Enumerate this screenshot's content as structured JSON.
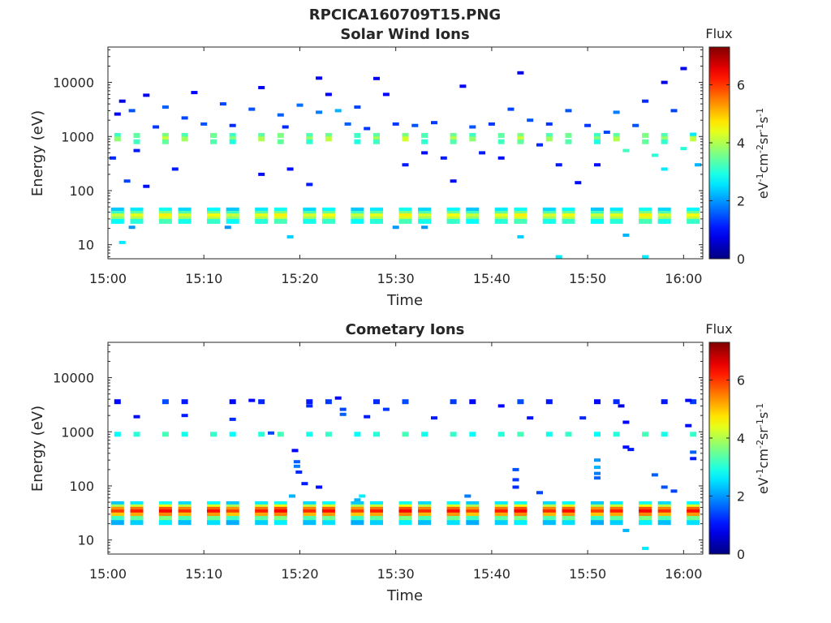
{
  "figure_title": "RPCICA160709T15.PNG",
  "chart_data": [
    {
      "type": "heatmap",
      "title": "Solar Wind Ions",
      "xlabel": "Time",
      "ylabel": "Energy (eV)",
      "x_ticks": [
        "15:00",
        "15:10",
        "15:20",
        "15:30",
        "15:40",
        "15:50",
        "16:00"
      ],
      "x_range_minutes": [
        0,
        62
      ],
      "y_scale": "log",
      "y_ticks": [
        10,
        100,
        1000,
        10000
      ],
      "y_range": [
        5.5,
        45000
      ],
      "grid": false,
      "colorbar": {
        "label": "Flux",
        "units": "eV-1cm-2sr-1s-1",
        "ticks": [
          0,
          2,
          4,
          6
        ],
        "range": [
          0,
          7.3
        ],
        "colormap": "jet"
      },
      "columns_minutes": [
        1,
        3,
        6,
        8,
        11,
        13,
        16,
        18,
        21,
        23,
        26,
        28,
        31,
        33,
        36,
        38,
        41,
        43,
        46,
        48,
        51,
        53,
        56,
        58,
        61
      ],
      "low_band": [
        {
          "energy": 44,
          "value": 2.6
        },
        {
          "energy": 38,
          "value": 3.4
        },
        {
          "energy": 34,
          "value": 4.4
        },
        {
          "energy": 30,
          "value": 4.0
        },
        {
          "energy": 27,
          "value": 3.0
        }
      ],
      "mid_band": [
        {
          "energy": 1050,
          "value": 3.4
        },
        {
          "energy": 900,
          "value": 4.0
        },
        {
          "energy": 800,
          "value": 3.2
        }
      ],
      "scatter": [
        {
          "t": 0.5,
          "energy": 400,
          "value": 1.2
        },
        {
          "t": 1,
          "energy": 2600,
          "value": 0.9
        },
        {
          "t": 1.5,
          "energy": 4500,
          "value": 0.8
        },
        {
          "t": 2,
          "energy": 150,
          "value": 1.4
        },
        {
          "t": 2.5,
          "energy": 3000,
          "value": 1.5
        },
        {
          "t": 3,
          "energy": 550,
          "value": 1.1
        },
        {
          "t": 4,
          "energy": 5800,
          "value": 0.8
        },
        {
          "t": 4,
          "energy": 120,
          "value": 1.0
        },
        {
          "t": 5,
          "energy": 1500,
          "value": 1.3
        },
        {
          "t": 6,
          "energy": 3500,
          "value": 1.6
        },
        {
          "t": 7,
          "energy": 250,
          "value": 1.1
        },
        {
          "t": 8,
          "energy": 2200,
          "value": 1.4
        },
        {
          "t": 9,
          "energy": 6500,
          "value": 0.9
        },
        {
          "t": 10,
          "energy": 1700,
          "value": 1.5
        },
        {
          "t": 12,
          "energy": 4000,
          "value": 1.4
        },
        {
          "t": 13,
          "energy": 1600,
          "value": 1.2
        },
        {
          "t": 15,
          "energy": 3200,
          "value": 1.5
        },
        {
          "t": 16,
          "energy": 8000,
          "value": 0.9
        },
        {
          "t": 16,
          "energy": 200,
          "value": 1.0
        },
        {
          "t": 18,
          "energy": 2500,
          "value": 1.6
        },
        {
          "t": 18.5,
          "energy": 1500,
          "value": 1.2
        },
        {
          "t": 19,
          "energy": 250,
          "value": 1.0
        },
        {
          "t": 20,
          "energy": 3800,
          "value": 1.7
        },
        {
          "t": 21,
          "energy": 130,
          "value": 1.1
        },
        {
          "t": 22,
          "energy": 12000,
          "value": 0.8
        },
        {
          "t": 22,
          "energy": 2800,
          "value": 1.8
        },
        {
          "t": 23,
          "energy": 6000,
          "value": 0.9
        },
        {
          "t": 24,
          "energy": 3000,
          "value": 2.2
        },
        {
          "t": 25,
          "energy": 1700,
          "value": 1.6
        },
        {
          "t": 26,
          "energy": 3500,
          "value": 1.4
        },
        {
          "t": 27,
          "energy": 1400,
          "value": 1.3
        },
        {
          "t": 28,
          "energy": 11800,
          "value": 0.8
        },
        {
          "t": 29,
          "energy": 6000,
          "value": 0.9
        },
        {
          "t": 30,
          "energy": 1700,
          "value": 1.3
        },
        {
          "t": 31,
          "energy": 300,
          "value": 1.1
        },
        {
          "t": 32,
          "energy": 1600,
          "value": 1.5
        },
        {
          "t": 33,
          "energy": 500,
          "value": 1.0
        },
        {
          "t": 34,
          "energy": 1800,
          "value": 1.3
        },
        {
          "t": 35,
          "energy": 400,
          "value": 1.1
        },
        {
          "t": 36,
          "energy": 150,
          "value": 1.0
        },
        {
          "t": 37,
          "energy": 8500,
          "value": 0.9
        },
        {
          "t": 38,
          "energy": 1500,
          "value": 1.5
        },
        {
          "t": 39,
          "energy": 500,
          "value": 1.1
        },
        {
          "t": 40,
          "energy": 1700,
          "value": 1.3
        },
        {
          "t": 41,
          "energy": 400,
          "value": 1.0
        },
        {
          "t": 42,
          "energy": 3200,
          "value": 1.4
        },
        {
          "t": 43,
          "energy": 15000,
          "value": 0.8
        },
        {
          "t": 44,
          "energy": 2000,
          "value": 1.5
        },
        {
          "t": 45,
          "energy": 700,
          "value": 1.2
        },
        {
          "t": 46,
          "energy": 1700,
          "value": 1.3
        },
        {
          "t": 47,
          "energy": 300,
          "value": 1.1
        },
        {
          "t": 48,
          "energy": 3000,
          "value": 1.5
        },
        {
          "t": 49,
          "energy": 140,
          "value": 1.0
        },
        {
          "t": 50,
          "energy": 1600,
          "value": 1.3
        },
        {
          "t": 51,
          "energy": 300,
          "value": 1.0
        },
        {
          "t": 52,
          "energy": 1200,
          "value": 1.4
        },
        {
          "t": 53,
          "energy": 2800,
          "value": 1.8
        },
        {
          "t": 54,
          "energy": 550,
          "value": 3.2
        },
        {
          "t": 55,
          "energy": 1600,
          "value": 1.5
        },
        {
          "t": 56,
          "energy": 4500,
          "value": 1.2
        },
        {
          "t": 57,
          "energy": 450,
          "value": 3.0
        },
        {
          "t": 58,
          "energy": 10000,
          "value": 0.8
        },
        {
          "t": 58,
          "energy": 250,
          "value": 2.6
        },
        {
          "t": 59,
          "energy": 3000,
          "value": 1.4
        },
        {
          "t": 60,
          "energy": 18000,
          "value": 0.8
        },
        {
          "t": 60,
          "energy": 600,
          "value": 3.0
        },
        {
          "t": 61,
          "energy": 1100,
          "value": 2.6
        },
        {
          "t": 61.5,
          "energy": 300,
          "value": 2.2
        },
        {
          "t": 1.5,
          "energy": 11,
          "value": 2.6
        },
        {
          "t": 2.5,
          "energy": 21,
          "value": 2.0
        },
        {
          "t": 12.5,
          "energy": 21,
          "value": 2.0
        },
        {
          "t": 19,
          "energy": 14,
          "value": 2.4
        },
        {
          "t": 30,
          "energy": 21,
          "value": 2.0
        },
        {
          "t": 33,
          "energy": 21,
          "value": 2.0
        },
        {
          "t": 43,
          "energy": 14,
          "value": 2.4
        },
        {
          "t": 47,
          "energy": 6,
          "value": 2.6
        },
        {
          "t": 54,
          "energy": 15,
          "value": 2.2
        },
        {
          "t": 56,
          "energy": 6,
          "value": 2.6
        }
      ]
    },
    {
      "type": "heatmap",
      "title": "Cometary Ions",
      "xlabel": "Time",
      "ylabel": "Energy (eV)",
      "x_ticks": [
        "15:00",
        "15:10",
        "15:20",
        "15:30",
        "15:40",
        "15:50",
        "16:00"
      ],
      "x_range_minutes": [
        0,
        62
      ],
      "y_scale": "log",
      "y_ticks": [
        10,
        100,
        1000,
        10000
      ],
      "y_range": [
        5.5,
        45000
      ],
      "grid": false,
      "colorbar": {
        "label": "Flux",
        "units": "eV-1cm-2sr-1s-1",
        "ticks": [
          0,
          2,
          4,
          6
        ],
        "range": [
          0,
          7.3
        ],
        "colormap": "jet"
      },
      "columns_minutes": [
        1,
        3,
        6,
        8,
        11,
        13,
        16,
        18,
        21,
        23,
        26,
        28,
        31,
        33,
        36,
        38,
        41,
        43,
        46,
        48,
        51,
        53,
        56,
        58,
        61
      ],
      "low_band": [
        {
          "energy": 47,
          "value": 2.6
        },
        {
          "energy": 41,
          "value": 4.2
        },
        {
          "energy": 37,
          "value": 5.6
        },
        {
          "energy": 33,
          "value": 6.2
        },
        {
          "energy": 29,
          "value": 5.2
        },
        {
          "energy": 25,
          "value": 3.4
        },
        {
          "energy": 21,
          "value": 2.4
        }
      ],
      "mid_band": [
        {
          "energy": 900,
          "value": 3.0
        },
        {
          "energy": 3600,
          "value": 1.2
        }
      ],
      "scatter": [
        {
          "t": 3,
          "energy": 1900,
          "value": 1.0
        },
        {
          "t": 8,
          "energy": 2000,
          "value": 1.1
        },
        {
          "t": 13,
          "energy": 1700,
          "value": 1.2
        },
        {
          "t": 15,
          "energy": 3800,
          "value": 0.9
        },
        {
          "t": 17,
          "energy": 950,
          "value": 1.4
        },
        {
          "t": 19.5,
          "energy": 450,
          "value": 0.9
        },
        {
          "t": 19.7,
          "energy": 280,
          "value": 1.6
        },
        {
          "t": 19.7,
          "energy": 230,
          "value": 1.8
        },
        {
          "t": 19.9,
          "energy": 180,
          "value": 1.2
        },
        {
          "t": 20.5,
          "energy": 110,
          "value": 1.1
        },
        {
          "t": 19.2,
          "energy": 65,
          "value": 2.2
        },
        {
          "t": 21,
          "energy": 3000,
          "value": 1.2
        },
        {
          "t": 22,
          "energy": 95,
          "value": 1.0
        },
        {
          "t": 24,
          "energy": 4200,
          "value": 0.9
        },
        {
          "t": 24.5,
          "energy": 2600,
          "value": 1.4
        },
        {
          "t": 24.5,
          "energy": 2100,
          "value": 1.6
        },
        {
          "t": 26,
          "energy": 55,
          "value": 2.2
        },
        {
          "t": 26.5,
          "energy": 65,
          "value": 2.6
        },
        {
          "t": 27,
          "energy": 1900,
          "value": 1.1
        },
        {
          "t": 29,
          "energy": 2600,
          "value": 1.3
        },
        {
          "t": 34,
          "energy": 1800,
          "value": 1.1
        },
        {
          "t": 37.5,
          "energy": 65,
          "value": 1.8
        },
        {
          "t": 41,
          "energy": 3000,
          "value": 0.9
        },
        {
          "t": 42.5,
          "energy": 200,
          "value": 1.5
        },
        {
          "t": 42.5,
          "energy": 130,
          "value": 1.3
        },
        {
          "t": 42.5,
          "energy": 95,
          "value": 1.2
        },
        {
          "t": 44,
          "energy": 1800,
          "value": 1.0
        },
        {
          "t": 45,
          "energy": 75,
          "value": 1.4
        },
        {
          "t": 49.5,
          "energy": 1800,
          "value": 1.2
        },
        {
          "t": 51,
          "energy": 300,
          "value": 2.0
        },
        {
          "t": 51,
          "energy": 220,
          "value": 2.2
        },
        {
          "t": 51,
          "energy": 170,
          "value": 1.8
        },
        {
          "t": 51,
          "energy": 140,
          "value": 1.6
        },
        {
          "t": 53.5,
          "energy": 3000,
          "value": 0.7
        },
        {
          "t": 54,
          "energy": 1500,
          "value": 0.9
        },
        {
          "t": 54,
          "energy": 520,
          "value": 1.0
        },
        {
          "t": 54.5,
          "energy": 470,
          "value": 1.1
        },
        {
          "t": 57,
          "energy": 160,
          "value": 1.6
        },
        {
          "t": 58,
          "energy": 95,
          "value": 1.5
        },
        {
          "t": 59,
          "energy": 80,
          "value": 1.4
        },
        {
          "t": 60.5,
          "energy": 1300,
          "value": 1.0
        },
        {
          "t": 60.5,
          "energy": 3800,
          "value": 0.9
        },
        {
          "t": 61,
          "energy": 420,
          "value": 1.6
        },
        {
          "t": 61,
          "energy": 320,
          "value": 1.1
        },
        {
          "t": 54,
          "energy": 15,
          "value": 2.2
        },
        {
          "t": 56,
          "energy": 7,
          "value": 2.6
        }
      ]
    }
  ]
}
